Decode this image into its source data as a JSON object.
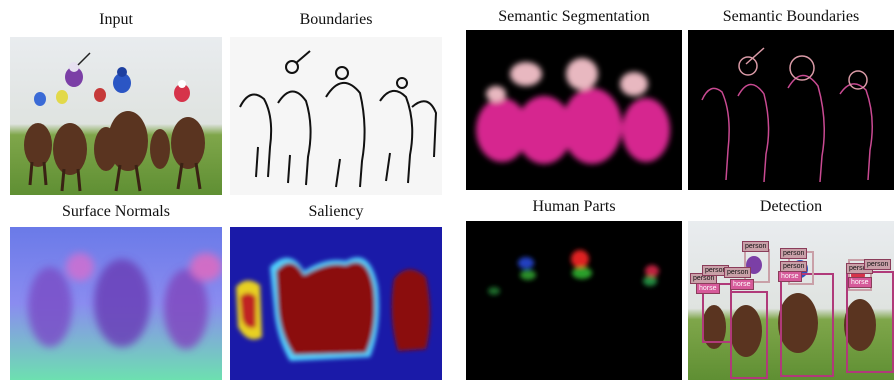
{
  "panels": {
    "input": {
      "title": "Input"
    },
    "boundaries": {
      "title": "Boundaries"
    },
    "semantic_segmentation": {
      "title": "Semantic Segmentation"
    },
    "semantic_boundaries": {
      "title": "Semantic Boundaries"
    },
    "surface_normals": {
      "title": "Surface Normals"
    },
    "saliency": {
      "title": "Saliency"
    },
    "human_parts": {
      "title": "Human Parts"
    },
    "detection": {
      "title": "Detection"
    }
  },
  "detection": {
    "labels": [
      "person",
      "person",
      "person",
      "person",
      "person",
      "person",
      "person",
      "person",
      "horse",
      "horse",
      "horse",
      "horse"
    ]
  },
  "colors": {
    "person_box": "#c9a0a8",
    "horse_box": "#b03a7a",
    "segmentation_horse": "#d6278f",
    "segmentation_person": "#e8b8c0",
    "saliency_bg": "#1a1aa8"
  }
}
